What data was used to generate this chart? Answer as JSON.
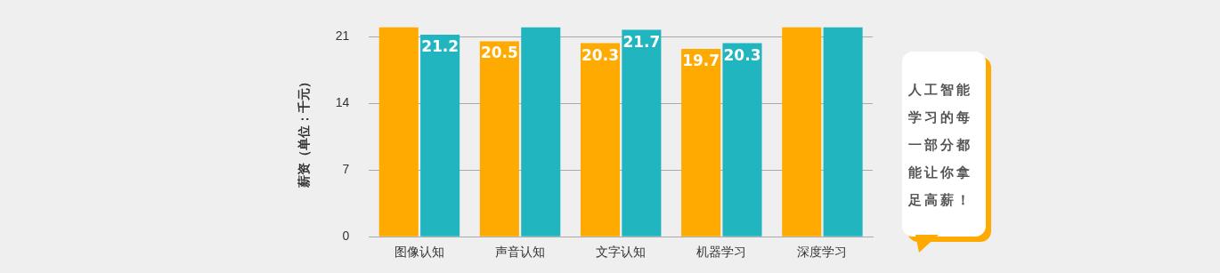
{
  "chart_data": {
    "type": "bar",
    "ylabel": "薪资（单位：千元）",
    "categories": [
      "图像认知",
      "声音认知",
      "文字认知",
      "机器学习",
      "深度学习"
    ],
    "series": [
      {
        "color": "#ffaa00",
        "values": [
          22,
          20.5,
          20.3,
          19.7,
          22
        ],
        "value_labels": [
          null,
          "20.5",
          "20.3",
          "19.7",
          null
        ]
      },
      {
        "color": "#20b5bf",
        "values": [
          21.2,
          22,
          21.7,
          20.3,
          22
        ],
        "value_labels": [
          "21.2",
          null,
          "21.7",
          "20.3",
          null
        ]
      }
    ],
    "ylim": [
      0,
      22
    ],
    "yticks": [
      0,
      7,
      14,
      21
    ],
    "grid": "y",
    "legend": false,
    "annotations": [
      "人工智能学习的每一部分都能让你拿足高薪！"
    ]
  }
}
